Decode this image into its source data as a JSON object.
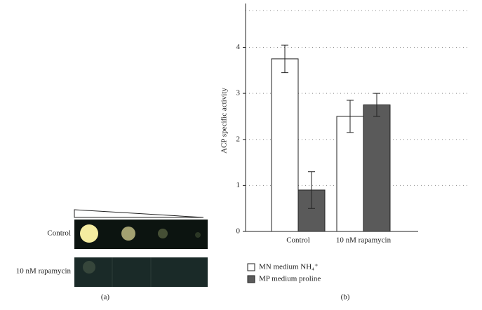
{
  "panel_a": {
    "rows": [
      "Control",
      "10 nM rapamycin"
    ],
    "panel_label": "(a)"
  },
  "chart_data": {
    "type": "bar",
    "panel_label": "(b)",
    "y_label": "ACP specific activity",
    "categories": [
      "Control",
      "10 nM rapamycin"
    ],
    "series": [
      {
        "name": "MN medium NH₄⁺",
        "color": "#ffffff",
        "values": [
          3.75,
          2.5
        ],
        "errors": [
          0.3,
          0.35
        ]
      },
      {
        "name": "MP medium proline",
        "color": "#5a5a5a",
        "values": [
          0.9,
          2.75
        ],
        "errors": [
          0.4,
          0.25
        ]
      }
    ],
    "ylim": [
      0,
      4.8
    ],
    "yticks": [
      0,
      1,
      2,
      3,
      4
    ],
    "grid": true
  }
}
